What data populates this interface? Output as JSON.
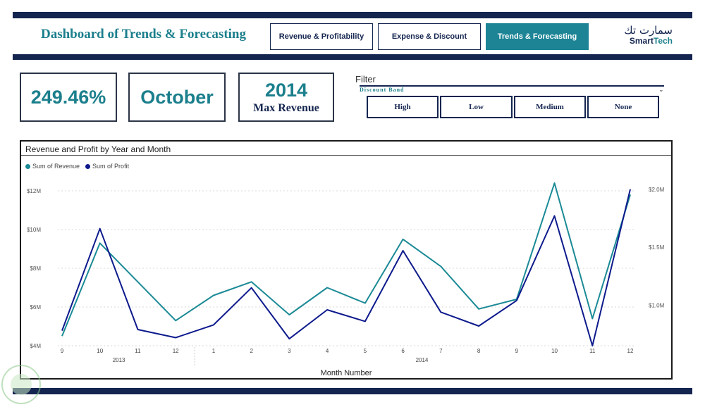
{
  "header": {
    "title": "Dashboard of Trends & Forecasting",
    "nav": [
      {
        "label": "Revenue & Profitability",
        "active": false
      },
      {
        "label": "Expense & Discount",
        "active": false
      },
      {
        "label": "Trends & Forecasting",
        "active": true
      }
    ],
    "logo_arabic": "سمارت تك",
    "logo_smart": "Smart",
    "logo_tech": "Tech"
  },
  "cards": {
    "growth_value": "249.46%",
    "month_value": "October",
    "year_value": "2014",
    "year_label": "Max Revenue"
  },
  "filter": {
    "title": "Filter",
    "subtitle": "Discount Band",
    "options": [
      "High",
      "Low",
      "Medium",
      "None"
    ]
  },
  "colors": {
    "brand_navy": "#14254f",
    "accent_teal": "#1b7f8c",
    "revenue_line": "#1b8a96",
    "profit_line": "#0d1a8c"
  },
  "chart_data": {
    "type": "line",
    "title": "Revenue and Profit by Year and Month",
    "xlabel": "Month Number",
    "x": [
      "9",
      "10",
      "11",
      "12",
      "1",
      "2",
      "3",
      "4",
      "5",
      "6",
      "7",
      "8",
      "9",
      "10",
      "11",
      "12"
    ],
    "year_groups": [
      {
        "label": "2013",
        "months": [
          "9",
          "10",
          "11",
          "12"
        ]
      },
      {
        "label": "2014",
        "months": [
          "1",
          "2",
          "3",
          "4",
          "5",
          "6",
          "7",
          "8",
          "9",
          "10",
          "11",
          "12"
        ]
      }
    ],
    "series": [
      {
        "name": "Sum of Revenue",
        "axis": "left",
        "color": "#1b8a96",
        "values": [
          4.5,
          9.3,
          7.3,
          5.3,
          6.6,
          7.3,
          5.6,
          7.0,
          6.2,
          9.5,
          8.1,
          5.9,
          6.4,
          12.4,
          5.4,
          11.8
        ]
      },
      {
        "name": "Sum of Profit",
        "axis": "right",
        "color": "#0d1a8c",
        "values": [
          0.78,
          1.66,
          0.79,
          0.72,
          0.83,
          1.15,
          0.71,
          0.96,
          0.86,
          1.47,
          0.94,
          0.82,
          1.04,
          1.77,
          0.65,
          2.0
        ]
      }
    ],
    "y_left": {
      "range": [
        4,
        12.8
      ],
      "ticks": [
        4,
        6,
        8,
        10,
        12
      ],
      "tick_labels": [
        "$4M",
        "$6M",
        "$8M",
        "$10M",
        "$12M"
      ]
    },
    "y_right": {
      "range": [
        0.65,
        2.12
      ],
      "ticks": [
        1.0,
        1.5,
        2.0
      ],
      "tick_labels": [
        "$1.0M",
        "$1.5M",
        "$2.0M"
      ]
    },
    "grid": true,
    "legend_position": "top-left"
  }
}
